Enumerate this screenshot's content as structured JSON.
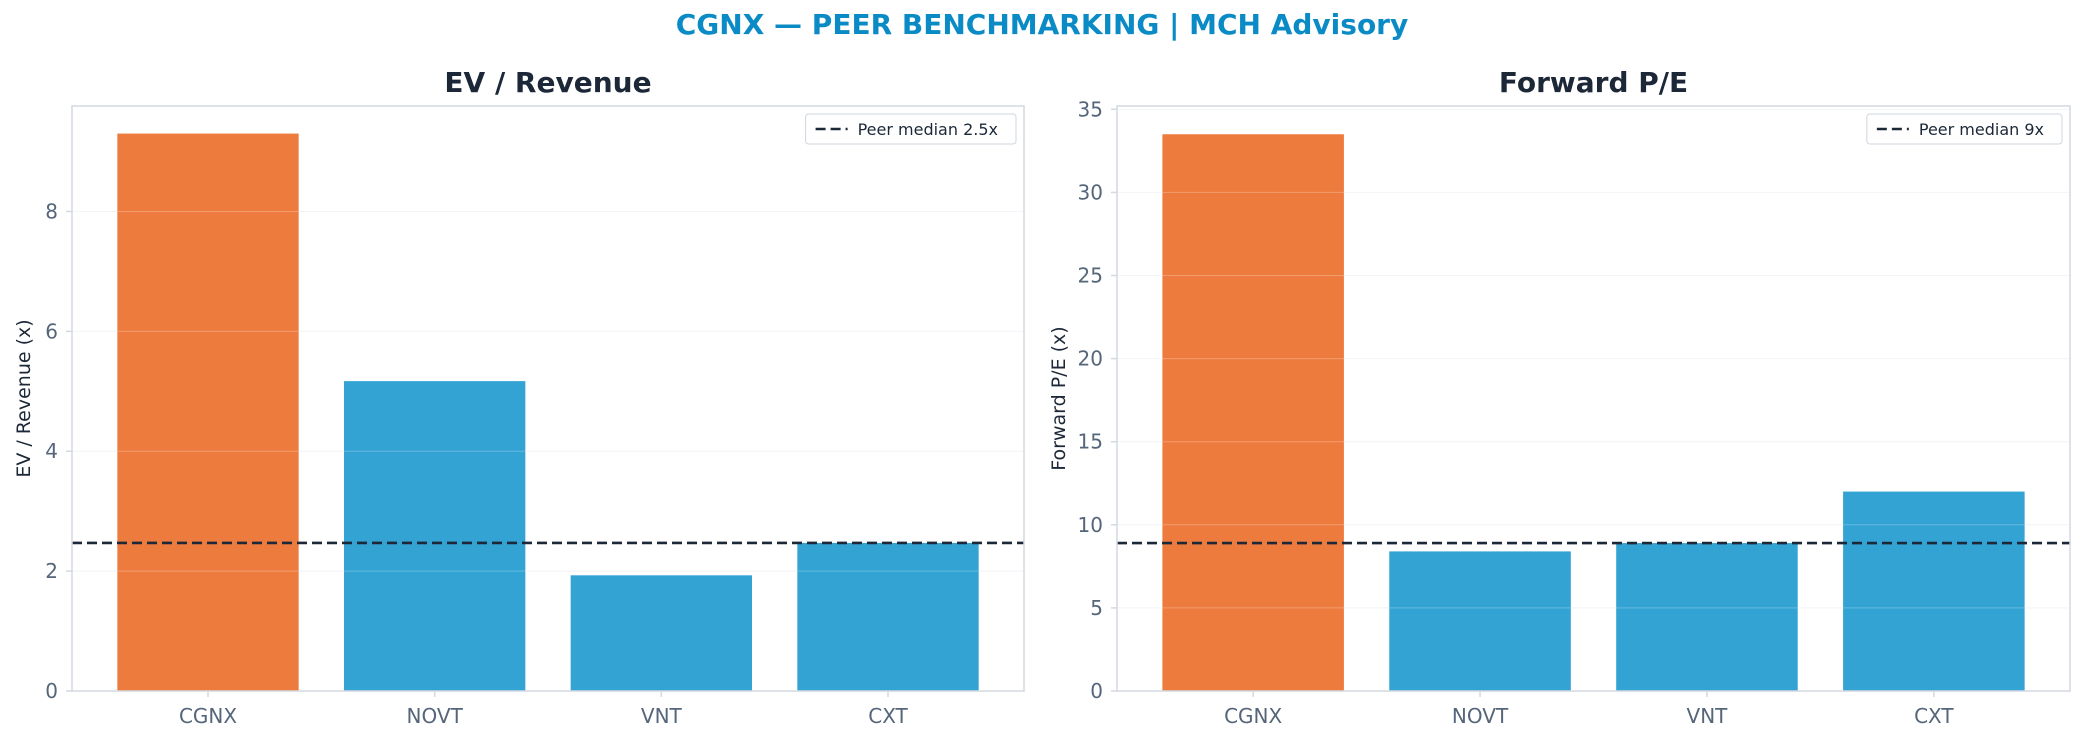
{
  "figure": {
    "suptitle": "CGNX — PEER BENCHMARKING | MCH Advisory"
  },
  "colors": {
    "highlight": "#ee7b3e",
    "peer": "#33a3d4",
    "median_line": "#1c2838",
    "axis": "#d4d9e1",
    "grid": "#eef1f4",
    "suptitle": "#0a8bc6"
  },
  "chart_data": [
    {
      "type": "bar",
      "title": "EV / Revenue",
      "ylabel": "EV / Revenue (x)",
      "xlabel": "",
      "categories": [
        "CGNX",
        "NOVT",
        "VNT",
        "CXT"
      ],
      "values": [
        9.3,
        5.17,
        1.93,
        2.47
      ],
      "highlight_index": 0,
      "ylim": [
        0,
        9.76
      ],
      "yticks": [
        0,
        2,
        4,
        6,
        8
      ],
      "grid": "horizontal",
      "reference_line": {
        "value": 2.47,
        "label": "Peer median 2.5x",
        "style": "dashed"
      },
      "legend": {
        "placement": "top-right"
      }
    },
    {
      "type": "bar",
      "title": "Forward P/E",
      "ylabel": "Forward P/E (x)",
      "xlabel": "",
      "categories": [
        "CGNX",
        "NOVT",
        "VNT",
        "CXT"
      ],
      "values": [
        33.5,
        8.4,
        8.9,
        12.0
      ],
      "highlight_index": 0,
      "ylim": [
        0,
        35.2
      ],
      "yticks": [
        0,
        5,
        10,
        15,
        20,
        25,
        30,
        35
      ],
      "grid": "horizontal",
      "reference_line": {
        "value": 8.9,
        "label": "Peer median 9x",
        "style": "dashed"
      },
      "legend": {
        "placement": "top-right"
      }
    }
  ]
}
